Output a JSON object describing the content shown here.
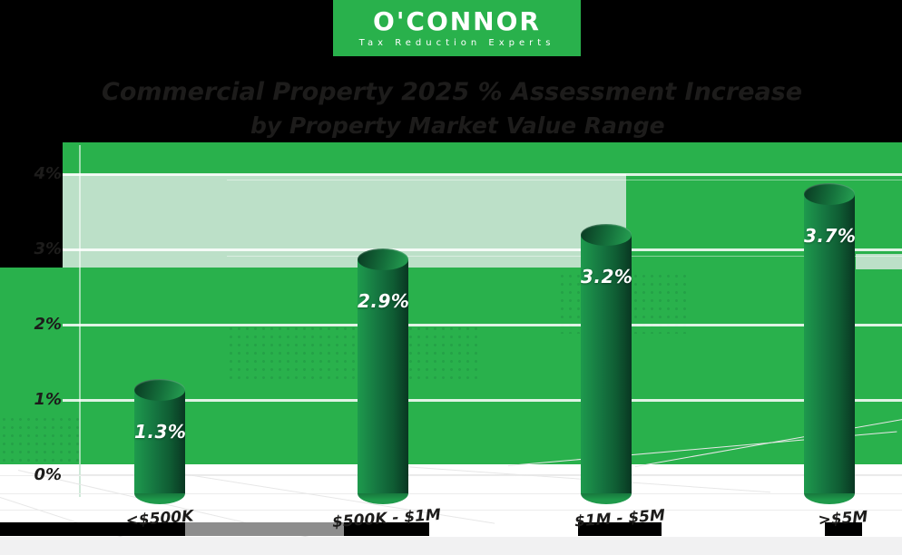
{
  "logo": {
    "name": "O'CONNOR",
    "tagline": "Tax Reduction Experts"
  },
  "title": {
    "line1": "Commercial Property 2025 % Assessment Increase",
    "line2": "by Property Market Value Range"
  },
  "chart_data": {
    "type": "bar",
    "title": "Commercial Property 2025 % Assessment Increase by Property Market Value Range",
    "categories": [
      "<$500K",
      "$500K - $1M",
      "$1M - $5M",
      ">$5M"
    ],
    "values": [
      1.3,
      2.9,
      3.2,
      3.7
    ],
    "value_labels": [
      "1.3%",
      "2.9%",
      "3.2%",
      "3.7%"
    ],
    "xlabel": "",
    "ylabel": "",
    "ylim": [
      0,
      4
    ],
    "yticks": [
      {
        "v": 0,
        "label": "0%"
      },
      {
        "v": 1,
        "label": "1%"
      },
      {
        "v": 2,
        "label": "2%"
      },
      {
        "v": 3,
        "label": "3%"
      },
      {
        "v": 4,
        "label": "4%"
      }
    ],
    "grid": true,
    "legend_position": "none"
  },
  "colors": {
    "band_green": "#29B14C",
    "pale_green": "#BCE0C8",
    "bar_dark_green": "#0F5C33",
    "ink": "#1D1C1B",
    "value_label": "#FFFFFF",
    "ground_gray": "#8D8D8D",
    "footer_strip": "#F1F1F2",
    "background_transparent": "#000000"
  }
}
